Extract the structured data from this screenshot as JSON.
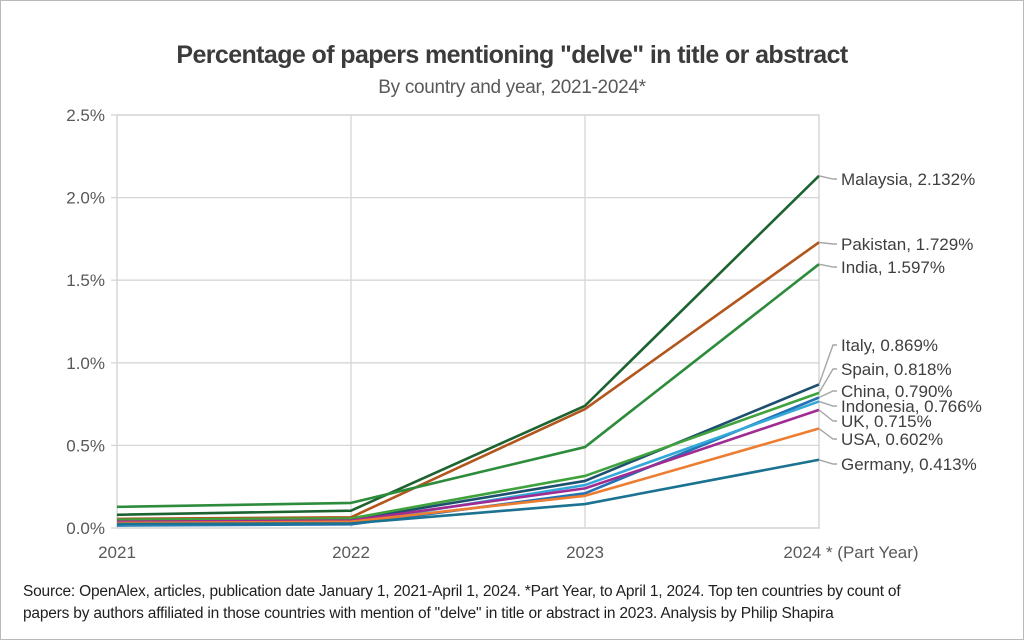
{
  "header": {
    "title": "Percentage of papers mentioning \"delve\" in title or abstract",
    "subtitle": "By country and year, 2021-2024*"
  },
  "footer": {
    "line1": "Source: OpenAlex, articles, publication date January 1, 2021-April 1, 2024. *Part Year, to April 1, 2024. Top ten countries by count of",
    "line2": "papers by authors affiliated in those countries with mention of \"delve\" in title or abstract in 2023. Analysis by Philip Shapira"
  },
  "colors": {
    "grid": "#d6d6d6",
    "axis_text": "#595959",
    "label_text": "#3f3f3f",
    "leader_line": "#a6a6a6"
  },
  "chart_data": {
    "type": "line",
    "title": "Percentage of papers mentioning \"delve\" in title or abstract",
    "subtitle": "By country and year, 2021-2024*",
    "x": [
      2021,
      2022,
      2023,
      2024
    ],
    "x_tick_labels": [
      "2021",
      "2022",
      "2023",
      "2024 * (Part Year)"
    ],
    "y_tick_labels": [
      "0.0%",
      "0.5%",
      "1.0%",
      "1.5%",
      "2.0%",
      "2.5%"
    ],
    "y_tick_values": [
      0,
      0.5,
      1.0,
      1.5,
      2.0,
      2.5
    ],
    "ylim": [
      0,
      2.5
    ],
    "ylabel": "",
    "xlabel": "",
    "grid": true,
    "legend_position": "right-end-labels",
    "series": [
      {
        "name": "Malaysia",
        "color": "#1d6330",
        "values": [
          0.08,
          0.105,
          0.74,
          2.132
        ],
        "end_label": "Malaysia, 2.132%"
      },
      {
        "name": "Pakistan",
        "color": "#b2561c",
        "values": [
          0.055,
          0.065,
          0.72,
          1.729
        ],
        "end_label": "Pakistan, 1.729%"
      },
      {
        "name": "India",
        "color": "#2d8c3c",
        "values": [
          0.128,
          0.152,
          0.49,
          1.597
        ],
        "end_label": "India, 1.597%"
      },
      {
        "name": "Italy",
        "color": "#1d4f6e",
        "values": [
          0.042,
          0.05,
          0.285,
          0.869
        ],
        "end_label": "Italy, 0.869%"
      },
      {
        "name": "Spain",
        "color": "#3fa23c",
        "values": [
          0.05,
          0.058,
          0.315,
          0.818
        ],
        "end_label": "Spain, 0.818%"
      },
      {
        "name": "China",
        "color": "#2272b4",
        "values": [
          0.015,
          0.022,
          0.21,
          0.79
        ],
        "end_label": "China, 0.790%"
      },
      {
        "name": "Indonesia",
        "color": "#35a8d8",
        "values": [
          0.022,
          0.03,
          0.26,
          0.766
        ],
        "end_label": "Indonesia, 0.766%"
      },
      {
        "name": "UK",
        "color": "#a02b93",
        "values": [
          0.038,
          0.045,
          0.24,
          0.715
        ],
        "end_label": "UK, 0.715%"
      },
      {
        "name": "USA",
        "color": "#ed7d31",
        "values": [
          0.03,
          0.038,
          0.195,
          0.602
        ],
        "end_label": "USA, 0.602%"
      },
      {
        "name": "Germany",
        "color": "#1b7291",
        "values": [
          0.024,
          0.028,
          0.145,
          0.413
        ],
        "end_label": "Germany, 0.413%"
      }
    ]
  }
}
